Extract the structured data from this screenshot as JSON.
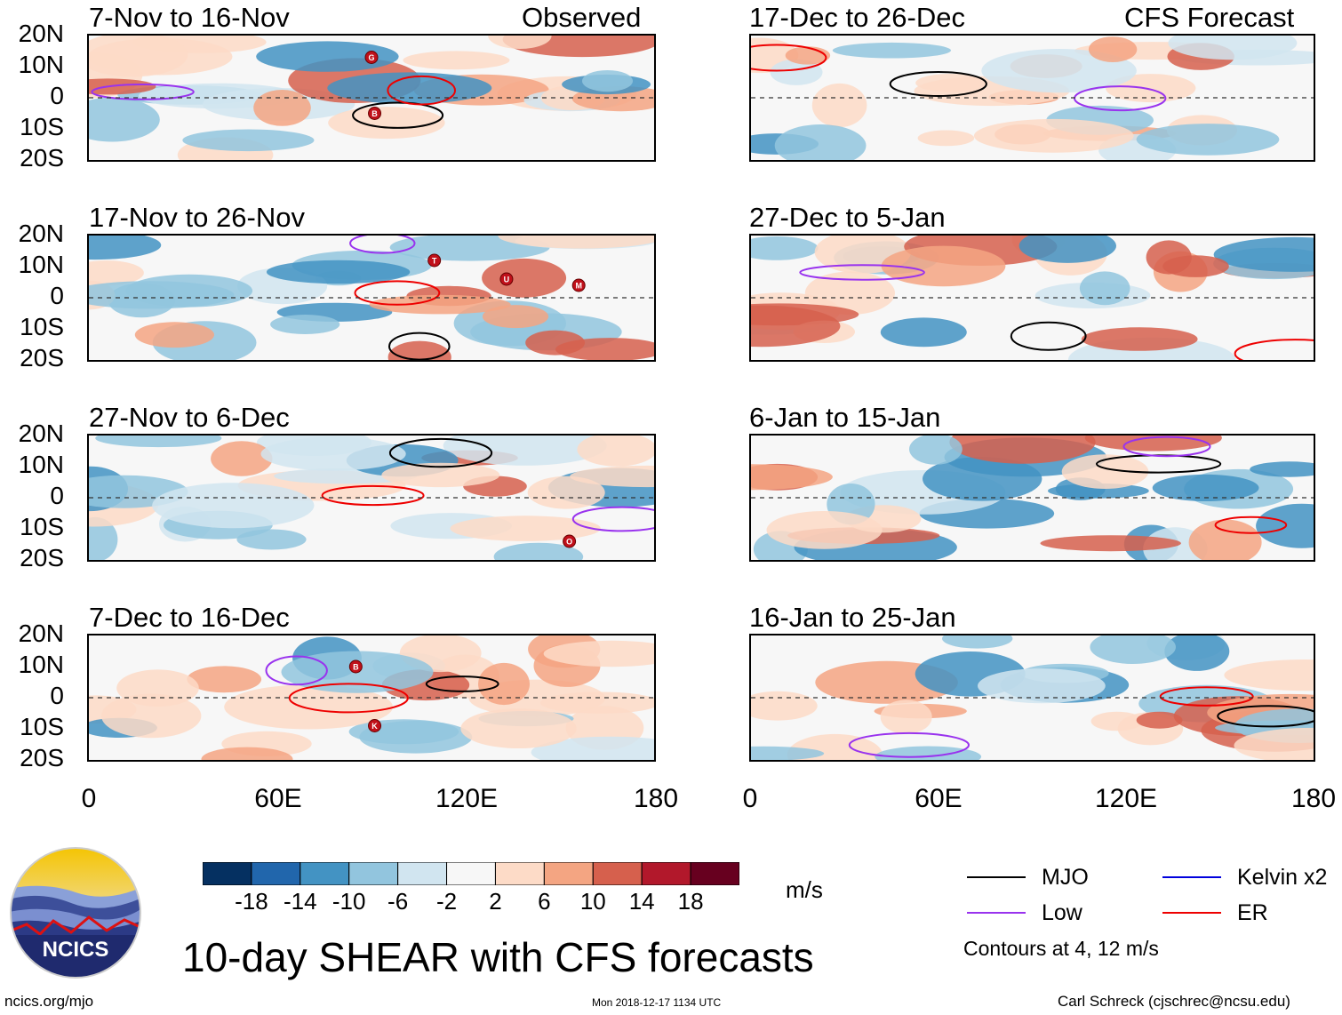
{
  "chart_data": {
    "type": "heatmap",
    "title": "10-day SHEAR with CFS forecasts",
    "units": "m/s",
    "observed_label": "Observed",
    "forecast_label": "CFS Forecast",
    "y_ticks": [
      "20N",
      "10N",
      "0",
      "10S",
      "20S"
    ],
    "lat_range": [
      -20,
      20
    ],
    "lon_range": [
      0,
      180
    ],
    "x_ticks": [
      "0",
      "60E",
      "120E",
      "180"
    ],
    "observed_panels": [
      {
        "title": "7-Nov to 16-Nov",
        "storms": [
          {
            "letter": "G",
            "lon": 90,
            "lat": 13
          },
          {
            "letter": "B",
            "lon": 91,
            "lat": -5
          }
        ]
      },
      {
        "title": "17-Nov to 26-Nov",
        "storms": [
          {
            "letter": "T",
            "lon": 110,
            "lat": 12
          },
          {
            "letter": "U",
            "lon": 133,
            "lat": 6
          },
          {
            "letter": "M",
            "lon": 156,
            "lat": 4
          }
        ]
      },
      {
        "title": "27-Nov to 6-Dec",
        "storms": [
          {
            "letter": "O",
            "lon": 153,
            "lat": -14
          }
        ]
      },
      {
        "title": "7-Dec to 16-Dec",
        "storms": [
          {
            "letter": "B",
            "lon": 85,
            "lat": 10
          },
          {
            "letter": "K",
            "lon": 91,
            "lat": -9
          }
        ]
      }
    ],
    "forecast_panels": [
      {
        "title": "17-Dec to 26-Dec"
      },
      {
        "title": "27-Dec to 5-Jan"
      },
      {
        "title": "6-Jan to 15-Jan"
      },
      {
        "title": "16-Jan to 25-Jan"
      }
    ],
    "colorbar": {
      "levels": [
        "-18",
        "-14",
        "-10",
        "-6",
        "-2",
        "2",
        "6",
        "10",
        "14",
        "18"
      ],
      "colors": [
        "#053061",
        "#2166ac",
        "#4393c3",
        "#92c5de",
        "#d1e5f0",
        "#f7f7f7",
        "#fddbc7",
        "#f4a582",
        "#d6604d",
        "#b2182b",
        "#67001f"
      ]
    },
    "legend": {
      "items": [
        {
          "label": "MJO",
          "color": "#000000"
        },
        {
          "label": "Kelvin x2",
          "color": "#0000dd"
        },
        {
          "label": "Low",
          "color": "#9933ee"
        },
        {
          "label": "ER",
          "color": "#ee0000"
        }
      ],
      "note": "Contours at 4, 12 m/s"
    }
  },
  "footer": {
    "logo_text": "NCICS",
    "url": "ncics.org/mjo",
    "timestamp": "Mon 2018-12-17 1134 UTC",
    "credit": "Carl Schreck (cjschrec@ncsu.edu)"
  }
}
